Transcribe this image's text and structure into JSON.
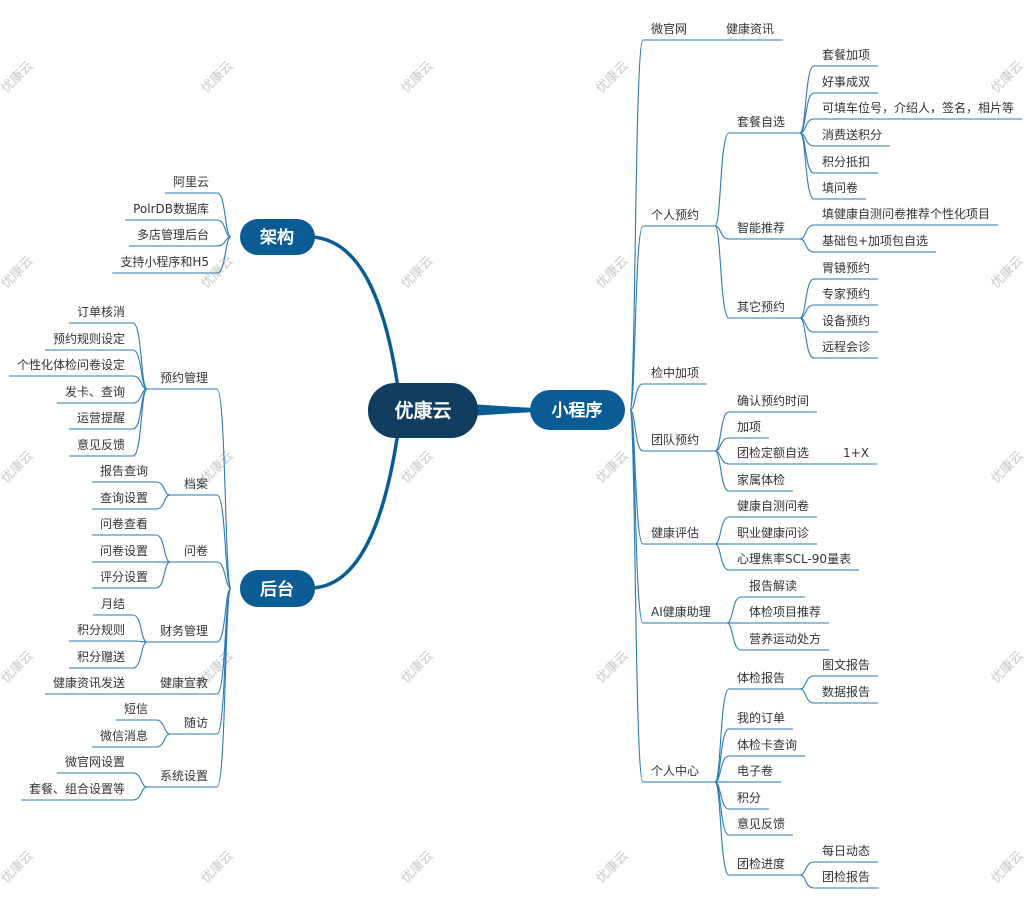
{
  "watermark": "优康云",
  "center": "优康云",
  "colors": {
    "center_fill": "#123d5e",
    "pill_fill": "#0b5c94",
    "branch": "#0b5c94",
    "line": "#2b7bb3",
    "text": "#333333"
  },
  "architecture": {
    "label": "架构",
    "children": [
      {
        "label": "阿里云"
      },
      {
        "label": "PolrDB数据库"
      },
      {
        "label": "多店管理后台"
      },
      {
        "label": "支持小程序和H5"
      }
    ]
  },
  "backend": {
    "label": "后台",
    "children": [
      {
        "label": "预约管理",
        "children": [
          {
            "label": "订单核消"
          },
          {
            "label": "预约规则设定"
          },
          {
            "label": "个性化体检问卷设定"
          },
          {
            "label": "发卡、查询"
          },
          {
            "label": "运营提醒"
          },
          {
            "label": "意见反馈"
          }
        ]
      },
      {
        "label": "档案",
        "children": [
          {
            "label": "报告查询"
          },
          {
            "label": "查询设置"
          }
        ]
      },
      {
        "label": "问卷",
        "children": [
          {
            "label": "问卷查看"
          },
          {
            "label": "问卷设置"
          },
          {
            "label": "评分设置"
          }
        ]
      },
      {
        "label": "财务管理",
        "children": [
          {
            "label": "月结"
          },
          {
            "label": "积分规则"
          },
          {
            "label": "积分赠送"
          }
        ]
      },
      {
        "label": "健康宣教",
        "children": [
          {
            "label": "健康资讯发送"
          }
        ]
      },
      {
        "label": "随访",
        "children": [
          {
            "label": "短信"
          },
          {
            "label": "微信消息"
          }
        ]
      },
      {
        "label": "系统设置",
        "children": [
          {
            "label": "微官网设置"
          },
          {
            "label": "套餐、组合设置等"
          }
        ]
      }
    ]
  },
  "miniprogram": {
    "label": "小程序",
    "children": [
      {
        "label": "微官网",
        "children": [
          {
            "label": "健康资讯"
          }
        ]
      },
      {
        "label": "个人预约",
        "children": [
          {
            "label": "套餐自选",
            "children": [
              {
                "label": "套餐加项"
              },
              {
                "label": "好事成双"
              },
              {
                "label": "可填车位号，介绍人，签名，相片等"
              },
              {
                "label": "消费送积分"
              },
              {
                "label": "积分抵扣"
              },
              {
                "label": "填问卷"
              }
            ]
          },
          {
            "label": "智能推荐",
            "children": [
              {
                "label": "填健康自测问卷推荐个性化项目"
              },
              {
                "label": "基础包+加项包自选"
              }
            ]
          },
          {
            "label": "其它预约",
            "children": [
              {
                "label": "胃镜预约"
              },
              {
                "label": "专家预约"
              },
              {
                "label": "设备预约"
              },
              {
                "label": "远程会诊"
              }
            ]
          }
        ]
      },
      {
        "label": "检中加项"
      },
      {
        "label": "团队预约",
        "children": [
          {
            "label": "确认预约时间"
          },
          {
            "label": "加项"
          },
          {
            "label": "团检定额自选",
            "note": "1+X"
          },
          {
            "label": "家属体检"
          }
        ]
      },
      {
        "label": "健康评估",
        "children": [
          {
            "label": "健康自测问卷"
          },
          {
            "label": "职业健康问诊"
          },
          {
            "label": "心理焦率SCL-90量表"
          }
        ]
      },
      {
        "label": "AI健康助理",
        "children": [
          {
            "label": "报告解读"
          },
          {
            "label": "体检项目推荐"
          },
          {
            "label": "营养运动处方"
          }
        ]
      },
      {
        "label": "个人中心",
        "children": [
          {
            "label": "体检报告",
            "children": [
              {
                "label": "图文报告"
              },
              {
                "label": "数据报告"
              }
            ]
          },
          {
            "label": "我的订单"
          },
          {
            "label": "体检卡查询"
          },
          {
            "label": "电子卷"
          },
          {
            "label": "积分"
          },
          {
            "label": "意见反馈"
          },
          {
            "label": "团检进度",
            "children": [
              {
                "label": "每日动态"
              },
              {
                "label": "团检报告"
              }
            ]
          }
        ]
      }
    ]
  }
}
